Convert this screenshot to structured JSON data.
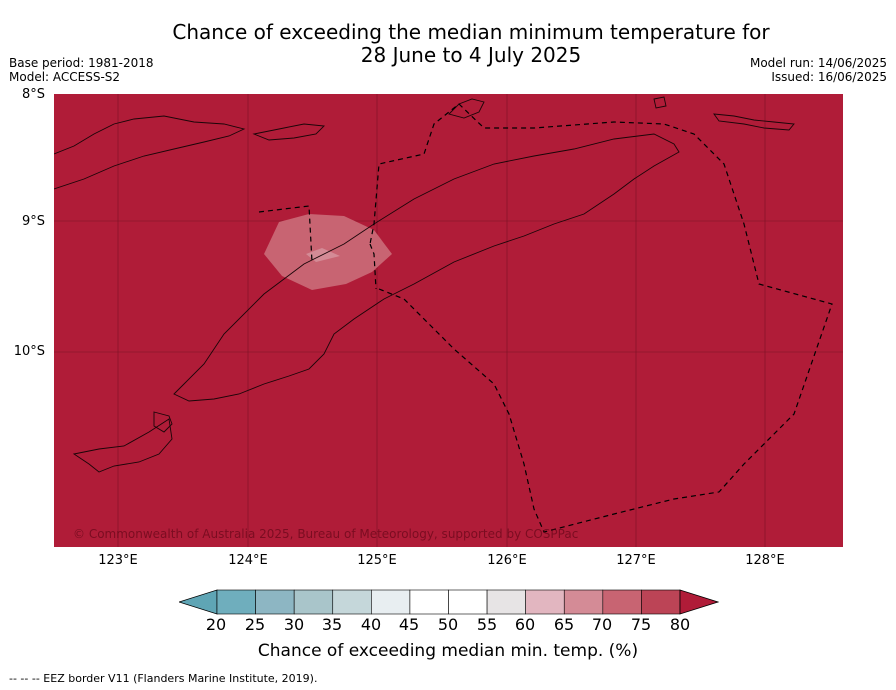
{
  "title": {
    "line1": "Chance of exceeding the median minimum temperature for",
    "line2": "28 June to 4 July 2025"
  },
  "meta": {
    "base_period": "Base period: 1981-2018",
    "model": "Model: ACCESS-S2",
    "model_run": "Model run: 14/06/2025",
    "issued": "Issued: 16/06/2025"
  },
  "map": {
    "lat_labels": [
      "8°S",
      "9°S",
      "10°S"
    ],
    "lon_labels": [
      "123°E",
      "124°E",
      "125°E",
      "126°E",
      "127°E",
      "128°E"
    ],
    "background_color": "#b01c38",
    "copyright": "© Commonwealth of Australia 2025, Bureau of Meteorology, supported by COSPPac"
  },
  "colorbar": {
    "labels": [
      "20",
      "25",
      "30",
      "35",
      "40",
      "45",
      "50",
      "55",
      "60",
      "65",
      "70",
      "75",
      "80"
    ],
    "colors": [
      "#5fa5b5",
      "#6faebd",
      "#8db6c3",
      "#a9c5ca",
      "#c5d7da",
      "#e8eef1",
      "#ffffff",
      "#ffffff",
      "#e7e4e5",
      "#e2b6c0",
      "#d48b96",
      "#c86472",
      "#bc4456",
      "#b01c38"
    ],
    "title": "Chance of exceeding median min. temp. (%)"
  },
  "footer": "--  --  -- EEZ border V11 (Flanders Marine Institute, 2019)."
}
